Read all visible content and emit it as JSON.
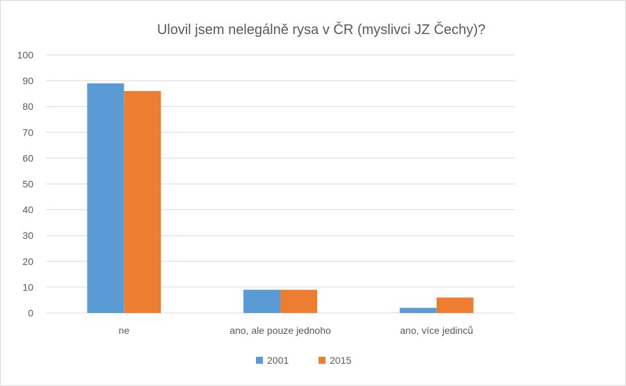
{
  "chart_data": {
    "type": "bar",
    "title": "Ulovil jsem nelegálně rysa v ČR (myslivci JZ Čechy)?",
    "categories": [
      "ne",
      "ano, ale pouze jednoho",
      "ano, více jedinců"
    ],
    "series": [
      {
        "name": "2001",
        "color": "#5b9bd5",
        "values": [
          89,
          9,
          2
        ]
      },
      {
        "name": "2015",
        "color": "#ed7d31",
        "values": [
          86,
          9,
          6
        ]
      }
    ],
    "ylim": [
      0,
      100
    ],
    "yticks": [
      "0",
      "10",
      "20",
      "30",
      "40",
      "50",
      "60",
      "70",
      "80",
      "90",
      "100"
    ],
    "grid": true,
    "legend": "bottom"
  }
}
